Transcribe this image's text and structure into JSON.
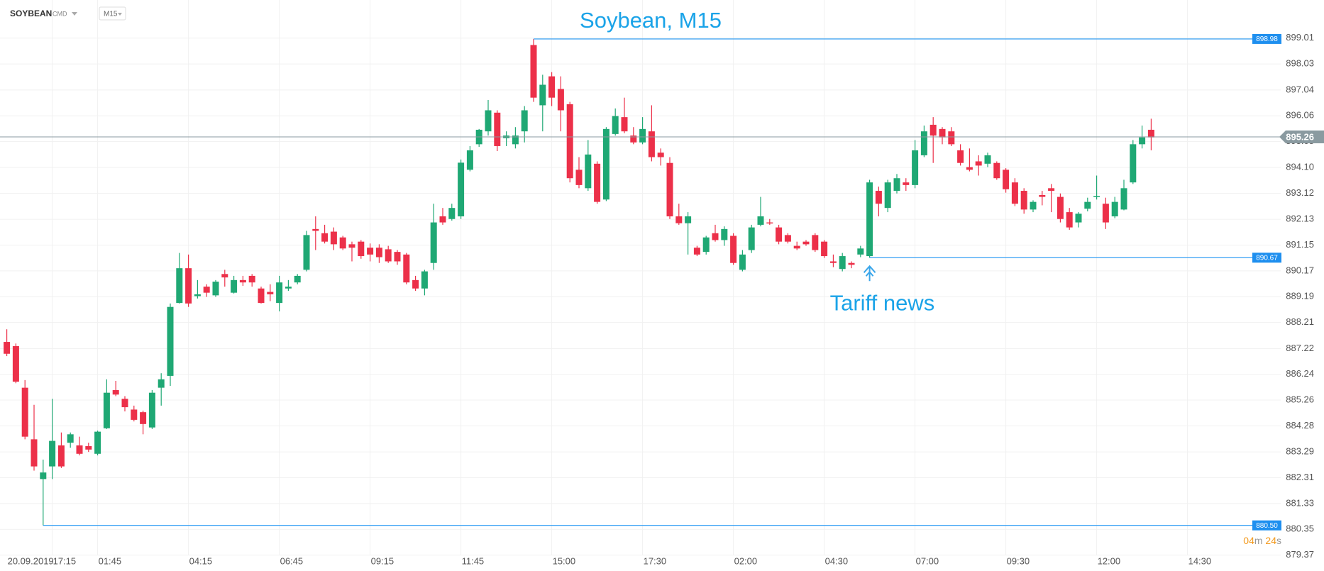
{
  "header": {
    "symbol": "SOYBEAN",
    "market": "CMD",
    "timeframe": "M15"
  },
  "chart_data": {
    "type": "candlestick",
    "title": "Soybean, M15",
    "categories": [
      "20.09.2019",
      null,
      null,
      null,
      null,
      "17:15",
      null,
      null,
      null,
      null,
      "01:45",
      null,
      null,
      null,
      null,
      null,
      null,
      null,
      null,
      null,
      "04:15",
      null,
      null,
      null,
      null,
      null,
      null,
      null,
      null,
      null,
      "06:45",
      null,
      null,
      null,
      null,
      null,
      null,
      null,
      null,
      null,
      "09:15",
      null,
      null,
      null,
      null,
      null,
      null,
      null,
      null,
      null,
      "11:45",
      null,
      null,
      null,
      null,
      null,
      null,
      null,
      null,
      null,
      "15:00",
      null,
      null,
      null,
      null,
      null,
      null,
      null,
      null,
      null,
      "17:30",
      null,
      null,
      null,
      null,
      null,
      null,
      null,
      null,
      null,
      "02:00",
      null,
      null,
      null,
      null,
      null,
      null,
      null,
      null,
      null,
      "04:30",
      null,
      null,
      null,
      null,
      null,
      null,
      null,
      null,
      null,
      "07:00",
      null,
      null,
      null,
      null,
      null,
      null,
      null,
      null,
      null,
      "09:30",
      null,
      null,
      null,
      null,
      null,
      null,
      null,
      null,
      null,
      "12:00",
      null,
      null,
      null,
      null,
      null,
      null,
      null,
      null,
      null,
      "14:30"
    ],
    "open": [
      887.47,
      887.31,
      885.73,
      883.77,
      882.26,
      882.74,
      883.54,
      883.64,
      883.54,
      883.51,
      883.22,
      884.19,
      885.64,
      885.31,
      884.9,
      884.8,
      884.22,
      885.73,
      886.18,
      888.95,
      890.27,
      889.21,
      889.57,
      889.24,
      890.05,
      889.34,
      889.82,
      889.98,
      889.5,
      889.37,
      888.95,
      889.5,
      889.73,
      890.21,
      891.76,
      891.6,
      891.66,
      891.44,
      891.18,
      891.28,
      891.05,
      891.05,
      890.99,
      890.89,
      890.79,
      889.82,
      889.5,
      890.47,
      892.24,
      892.14,
      892.24,
      894.01,
      894.98,
      895.47,
      896.18,
      895.21,
      894.98,
      895.47,
      898.75,
      896.46,
      897.56,
      897.08,
      896.5,
      894.01,
      893.31,
      894.24,
      892.88,
      895.37,
      896.01,
      895.31,
      895.05,
      895.47,
      894.66,
      894.27,
      892.24,
      891.98,
      891.05,
      890.89,
      891.6,
      891.34,
      891.5,
      890.21,
      890.96,
      891.92,
      892.01,
      891.82,
      891.53,
      891.12,
      891.28,
      891.53,
      891.28,
      890.53,
      890.24,
      890.47,
      890.79,
      890.73,
      893.21,
      892.56,
      893.21,
      893.53,
      893.43,
      894.56,
      895.72,
      895.56,
      895.47,
      894.75,
      894.11,
      894.33,
      894.24,
      894.27,
      894.01,
      893.53,
      893.21,
      892.5,
      893.05,
      893.31,
      892.98,
      892.4,
      892.01,
      892.53,
      892.98,
      892.72,
      892.24,
      892.5,
      893.53,
      894.98,
      895.53,
      null,
      null,
      null,
      null
    ],
    "high": [
      887.95,
      887.41,
      886.02,
      885.08,
      883.0,
      885.31,
      884.03,
      884.03,
      883.87,
      883.64,
      884.1,
      886.05,
      885.99,
      885.41,
      885.05,
      884.86,
      885.64,
      886.28,
      888.93,
      890.85,
      890.79,
      889.82,
      889.66,
      889.82,
      890.21,
      889.98,
      889.98,
      890.05,
      889.57,
      889.66,
      889.98,
      889.82,
      890.05,
      891.69,
      892.24,
      891.92,
      891.82,
      891.5,
      891.28,
      891.34,
      891.21,
      891.18,
      891.12,
      890.96,
      890.85,
      889.98,
      890.21,
      892.72,
      892.56,
      892.72,
      894.4,
      894.91,
      895.56,
      896.66,
      896.27,
      895.47,
      895.63,
      896.43,
      898.98,
      897.62,
      897.72,
      897.56,
      896.59,
      894.49,
      895.14,
      894.33,
      895.63,
      896.34,
      896.75,
      895.63,
      896.01,
      896.46,
      894.82,
      894.49,
      892.72,
      892.4,
      891.12,
      891.5,
      891.92,
      891.86,
      891.6,
      890.96,
      891.92,
      892.98,
      892.14,
      891.92,
      891.6,
      891.28,
      891.34,
      891.6,
      891.34,
      890.79,
      890.85,
      890.53,
      891.12,
      893.63,
      893.37,
      893.63,
      893.85,
      893.69,
      895.14,
      895.69,
      896.01,
      895.63,
      895.63,
      894.98,
      894.82,
      894.56,
      894.66,
      894.33,
      894.07,
      893.69,
      893.31,
      892.85,
      893.21,
      893.47,
      893.11,
      892.56,
      892.4,
      892.95,
      893.79,
      892.95,
      892.98,
      893.63,
      895.14,
      895.69,
      895.95,
      null,
      null,
      null,
      null
    ],
    "low": [
      886.93,
      885.9,
      883.77,
      882.58,
      880.5,
      882.26,
      882.68,
      883.45,
      883.16,
      883.29,
      883.16,
      884.16,
      885.41,
      884.83,
      884.45,
      883.96,
      884.16,
      885.05,
      885.8,
      888.93,
      888.8,
      889.12,
      889.18,
      889.18,
      889.57,
      889.31,
      889.6,
      889.57,
      888.93,
      889.02,
      888.63,
      889.41,
      889.66,
      890.15,
      890.96,
      891.21,
      890.96,
      890.96,
      890.53,
      890.63,
      890.53,
      890.47,
      890.47,
      890.4,
      889.66,
      889.41,
      889.24,
      890.21,
      891.92,
      892.08,
      892.14,
      893.95,
      894.88,
      895.31,
      894.72,
      894.91,
      894.82,
      895.05,
      896.59,
      895.47,
      896.43,
      895.47,
      893.53,
      893.31,
      893.21,
      892.72,
      892.82,
      895.31,
      895.4,
      894.98,
      894.98,
      894.33,
      894.17,
      892.14,
      891.92,
      890.79,
      890.73,
      890.79,
      891.28,
      891.12,
      890.4,
      890.15,
      890.85,
      891.86,
      891.92,
      891.18,
      891.21,
      890.96,
      891.12,
      890.89,
      890.66,
      890.31,
      890.15,
      890.27,
      890.69,
      890.67,
      892.24,
      892.4,
      893.11,
      893.21,
      893.31,
      894.49,
      894.27,
      894.98,
      894.91,
      894.17,
      893.95,
      893.79,
      894.11,
      893.63,
      893.14,
      892.63,
      892.34,
      892.4,
      892.66,
      892.4,
      892.01,
      891.73,
      891.82,
      892.43,
      892.88,
      891.76,
      892.17,
      892.47,
      893.47,
      894.82,
      894.75,
      null,
      null,
      null,
      null
    ],
    "close": [
      887.02,
      885.96,
      883.87,
      882.74,
      882.51,
      883.71,
      882.74,
      883.96,
      883.22,
      883.38,
      884.06,
      885.54,
      885.47,
      884.99,
      884.51,
      884.35,
      885.54,
      886.05,
      888.8,
      890.27,
      888.93,
      889.28,
      889.34,
      889.76,
      889.92,
      889.82,
      889.73,
      889.73,
      888.95,
      889.28,
      889.73,
      889.57,
      889.98,
      891.53,
      891.69,
      891.28,
      891.18,
      891.02,
      891.05,
      890.73,
      890.79,
      890.69,
      890.53,
      890.53,
      889.73,
      889.5,
      890.15,
      892.01,
      892.01,
      892.56,
      894.28,
      894.75,
      895.53,
      896.27,
      894.91,
      895.31,
      895.31,
      896.27,
      896.75,
      897.24,
      896.75,
      896.27,
      893.69,
      893.43,
      894.59,
      892.79,
      895.56,
      896.05,
      895.47,
      895.05,
      895.56,
      894.49,
      894.49,
      892.24,
      891.98,
      892.24,
      890.79,
      891.44,
      891.34,
      891.76,
      890.47,
      890.79,
      891.82,
      892.24,
      891.98,
      891.28,
      891.28,
      891.02,
      891.18,
      890.96,
      890.73,
      890.47,
      890.73,
      890.4,
      891.02,
      893.53,
      892.72,
      893.53,
      893.69,
      893.43,
      894.75,
      895.47,
      895.31,
      895.24,
      894.98,
      894.27,
      894.01,
      894.17,
      894.56,
      893.69,
      893.27,
      892.72,
      892.5,
      892.79,
      892.98,
      893.21,
      892.14,
      891.82,
      892.34,
      892.79,
      893.01,
      892.01,
      892.79,
      893.31,
      894.98,
      895.24,
      895.24,
      null,
      null,
      null,
      null
    ],
    "up_color": "#1fa874",
    "down_color": "#ec3049",
    "ylim": [
      879.36,
      900.46
    ],
    "yticks": [
      899.01,
      898.03,
      897.04,
      896.06,
      895.08,
      {
        "value": 894.1,
        "label": "894.10"
      },
      893.12,
      892.13,
      891.15,
      890.17,
      889.19,
      888.21,
      887.22,
      886.24,
      885.26,
      884.28,
      883.29,
      882.31,
      881.33,
      880.35,
      879.37
    ],
    "grid": true,
    "current_price": 895.26,
    "levels": [
      {
        "value": 898.98,
        "label": "898.98",
        "start": 58
      },
      {
        "value": 890.67,
        "label": "890.67",
        "start": 95
      },
      {
        "value": 880.5,
        "label": "880.50",
        "start": 4
      }
    ],
    "annotation": {
      "text": "Tariff news",
      "index": 95
    },
    "countdown": [
      "04",
      "m ",
      "24",
      "s"
    ]
  }
}
